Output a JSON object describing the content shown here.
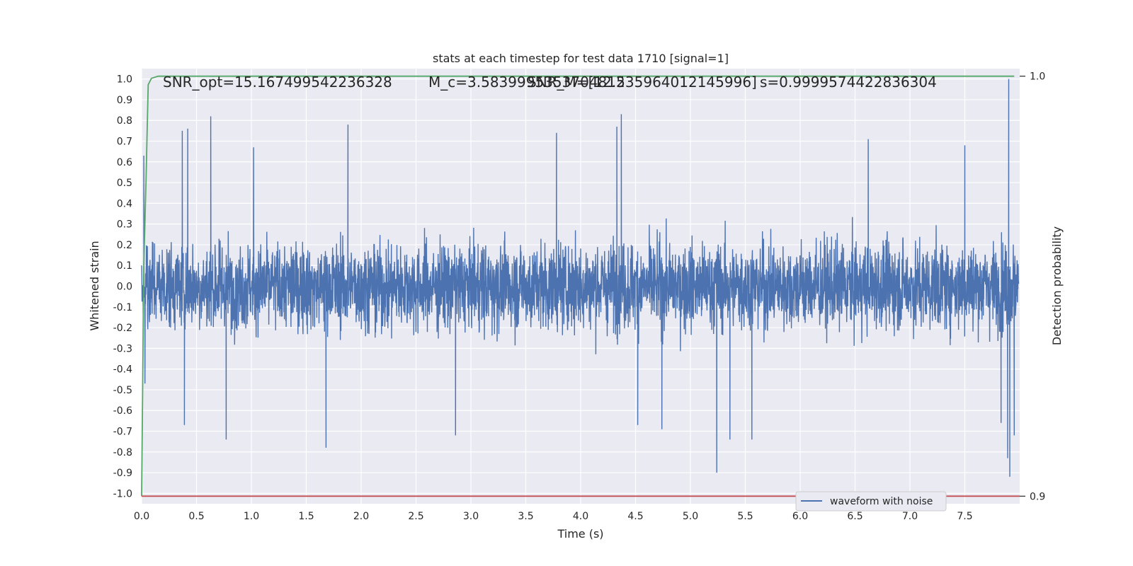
{
  "chart_data": {
    "type": "line",
    "title": "stats at each timestep for test data 1710 [signal=1]",
    "xlabel": "Time (s)",
    "ylabel": "Whitened strain",
    "y2label": "Detection probability",
    "xlim": [
      0.0,
      8.0
    ],
    "ylim": [
      -1.05,
      1.05
    ],
    "y2lim": [
      0.8982,
      1.0018
    ],
    "x_ticks": [
      "0.0",
      "0.5",
      "1.0",
      "1.5",
      "2.0",
      "2.5",
      "3.0",
      "3.5",
      "4.0",
      "4.5",
      "5.0",
      "5.5",
      "6.0",
      "6.5",
      "7.0",
      "7.5"
    ],
    "x_tick_values": [
      0.0,
      0.5,
      1.0,
      1.5,
      2.0,
      2.5,
      3.0,
      3.5,
      4.0,
      4.5,
      5.0,
      5.5,
      6.0,
      6.5,
      7.0,
      7.5
    ],
    "y_ticks": [
      "1.0",
      "0.9",
      "0.8",
      "0.7",
      "0.6",
      "0.5",
      "0.4",
      "0.3",
      "0.2",
      "0.1",
      "0.0",
      "-0.1",
      "-0.2",
      "-0.3",
      "-0.4",
      "-0.5",
      "-0.6",
      "-0.7",
      "-0.8",
      "-0.9",
      "-1.0"
    ],
    "y_tick_values": [
      1.0,
      0.9,
      0.8,
      0.7,
      0.6,
      0.5,
      0.4,
      0.3,
      0.2,
      0.1,
      0.0,
      -0.1,
      -0.2,
      -0.3,
      -0.4,
      -0.5,
      -0.6,
      -0.7,
      -0.8,
      -0.9,
      -1.0
    ],
    "y2_ticks": [
      "1.0",
      "0.9"
    ],
    "y2_tick_values": [
      1.0,
      0.9
    ],
    "grid": true,
    "legend_placement": "lower right",
    "annotations": [
      {
        "text": "SNR_opt=15.167499542236328"
      },
      {
        "text": "M_c=3.5839995353704812"
      },
      {
        "text": "SNR_M=[12.535964012145996]"
      },
      {
        "text": "s=0.9999574422836304"
      }
    ],
    "series": [
      {
        "name": "waveform with noise",
        "axis": "left",
        "color": "#4c72b0",
        "kind": "noise",
        "x_range": [
          0.0,
          7.99
        ],
        "typical_amplitude": 0.32,
        "peaks": [
          {
            "x": 0.02,
            "y": 0.63
          },
          {
            "x": 0.03,
            "y": -0.47
          },
          {
            "x": 0.37,
            "y": 0.75
          },
          {
            "x": 0.39,
            "y": -0.67
          },
          {
            "x": 0.42,
            "y": 0.76
          },
          {
            "x": 0.63,
            "y": 0.82
          },
          {
            "x": 0.77,
            "y": -0.74
          },
          {
            "x": 1.02,
            "y": 0.67
          },
          {
            "x": 1.68,
            "y": -0.78
          },
          {
            "x": 1.88,
            "y": 0.78
          },
          {
            "x": 2.86,
            "y": -0.72
          },
          {
            "x": 3.78,
            "y": 0.74
          },
          {
            "x": 4.33,
            "y": 0.77
          },
          {
            "x": 4.37,
            "y": 0.83
          },
          {
            "x": 4.52,
            "y": -0.67
          },
          {
            "x": 4.74,
            "y": -0.69
          },
          {
            "x": 5.24,
            "y": -0.9
          },
          {
            "x": 5.36,
            "y": -0.74
          },
          {
            "x": 5.56,
            "y": -0.74
          },
          {
            "x": 6.62,
            "y": 0.71
          },
          {
            "x": 7.5,
            "y": 0.68
          },
          {
            "x": 7.83,
            "y": -0.66
          },
          {
            "x": 7.89,
            "y": -0.83
          },
          {
            "x": 7.9,
            "y": 1.0
          },
          {
            "x": 7.91,
            "y": -0.92
          },
          {
            "x": 7.95,
            "y": -0.72
          }
        ]
      },
      {
        "name": "",
        "axis": "right",
        "color": "#55a868",
        "kind": "line",
        "x": [
          0.0,
          0.02,
          0.04,
          0.06,
          0.09,
          0.15,
          1.0,
          4.0,
          7.95
        ],
        "y": [
          0.9,
          0.955,
          0.975,
          0.998,
          0.9995,
          1.0,
          1.0,
          1.0,
          1.0
        ]
      },
      {
        "name": "",
        "axis": "right",
        "color": "#c44e52",
        "kind": "hline",
        "y": 0.9
      }
    ]
  }
}
